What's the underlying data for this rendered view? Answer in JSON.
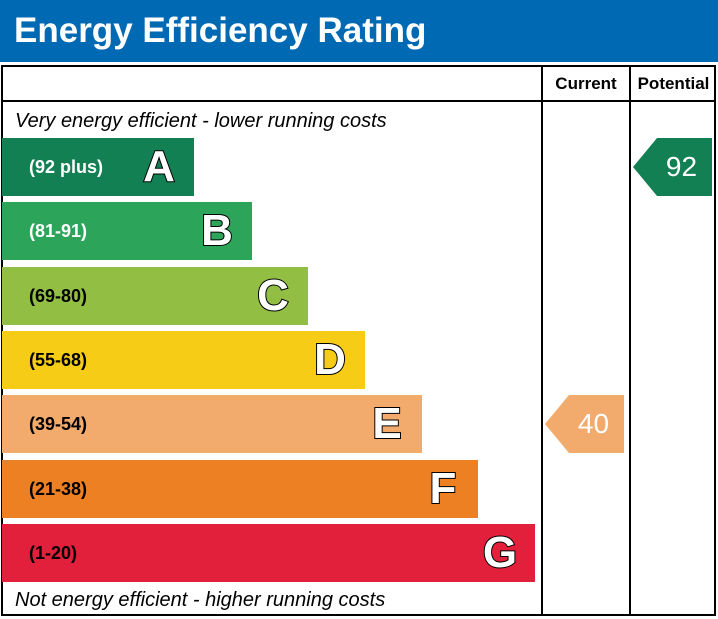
{
  "header": {
    "title": "Energy Efficiency Rating"
  },
  "columns": {
    "current": "Current",
    "potential": "Potential"
  },
  "captions": {
    "top": "Very energy efficient - lower running costs",
    "bottom": "Not energy efficient - higher running costs"
  },
  "chart_data": {
    "type": "bar",
    "categories": [
      "A",
      "B",
      "C",
      "D",
      "E",
      "F",
      "G"
    ],
    "ranges": [
      "(92 plus)",
      "(81-91)",
      "(69-80)",
      "(55-68)",
      "(39-54)",
      "(21-38)",
      "(1-20)"
    ],
    "colors": [
      "#138054",
      "#2ca55a",
      "#92be43",
      "#f6cc17",
      "#f2aa6d",
      "#ed8023",
      "#e2203b"
    ],
    "range_text_colors": [
      "#ffffff",
      "#ffffff",
      "#000000",
      "#000000",
      "#000000",
      "#000000",
      "#000000"
    ],
    "current": {
      "value": 40,
      "band": "E",
      "color": "#f2aa6d"
    },
    "potential": {
      "value": 92,
      "band": "A",
      "color": "#138054"
    }
  }
}
